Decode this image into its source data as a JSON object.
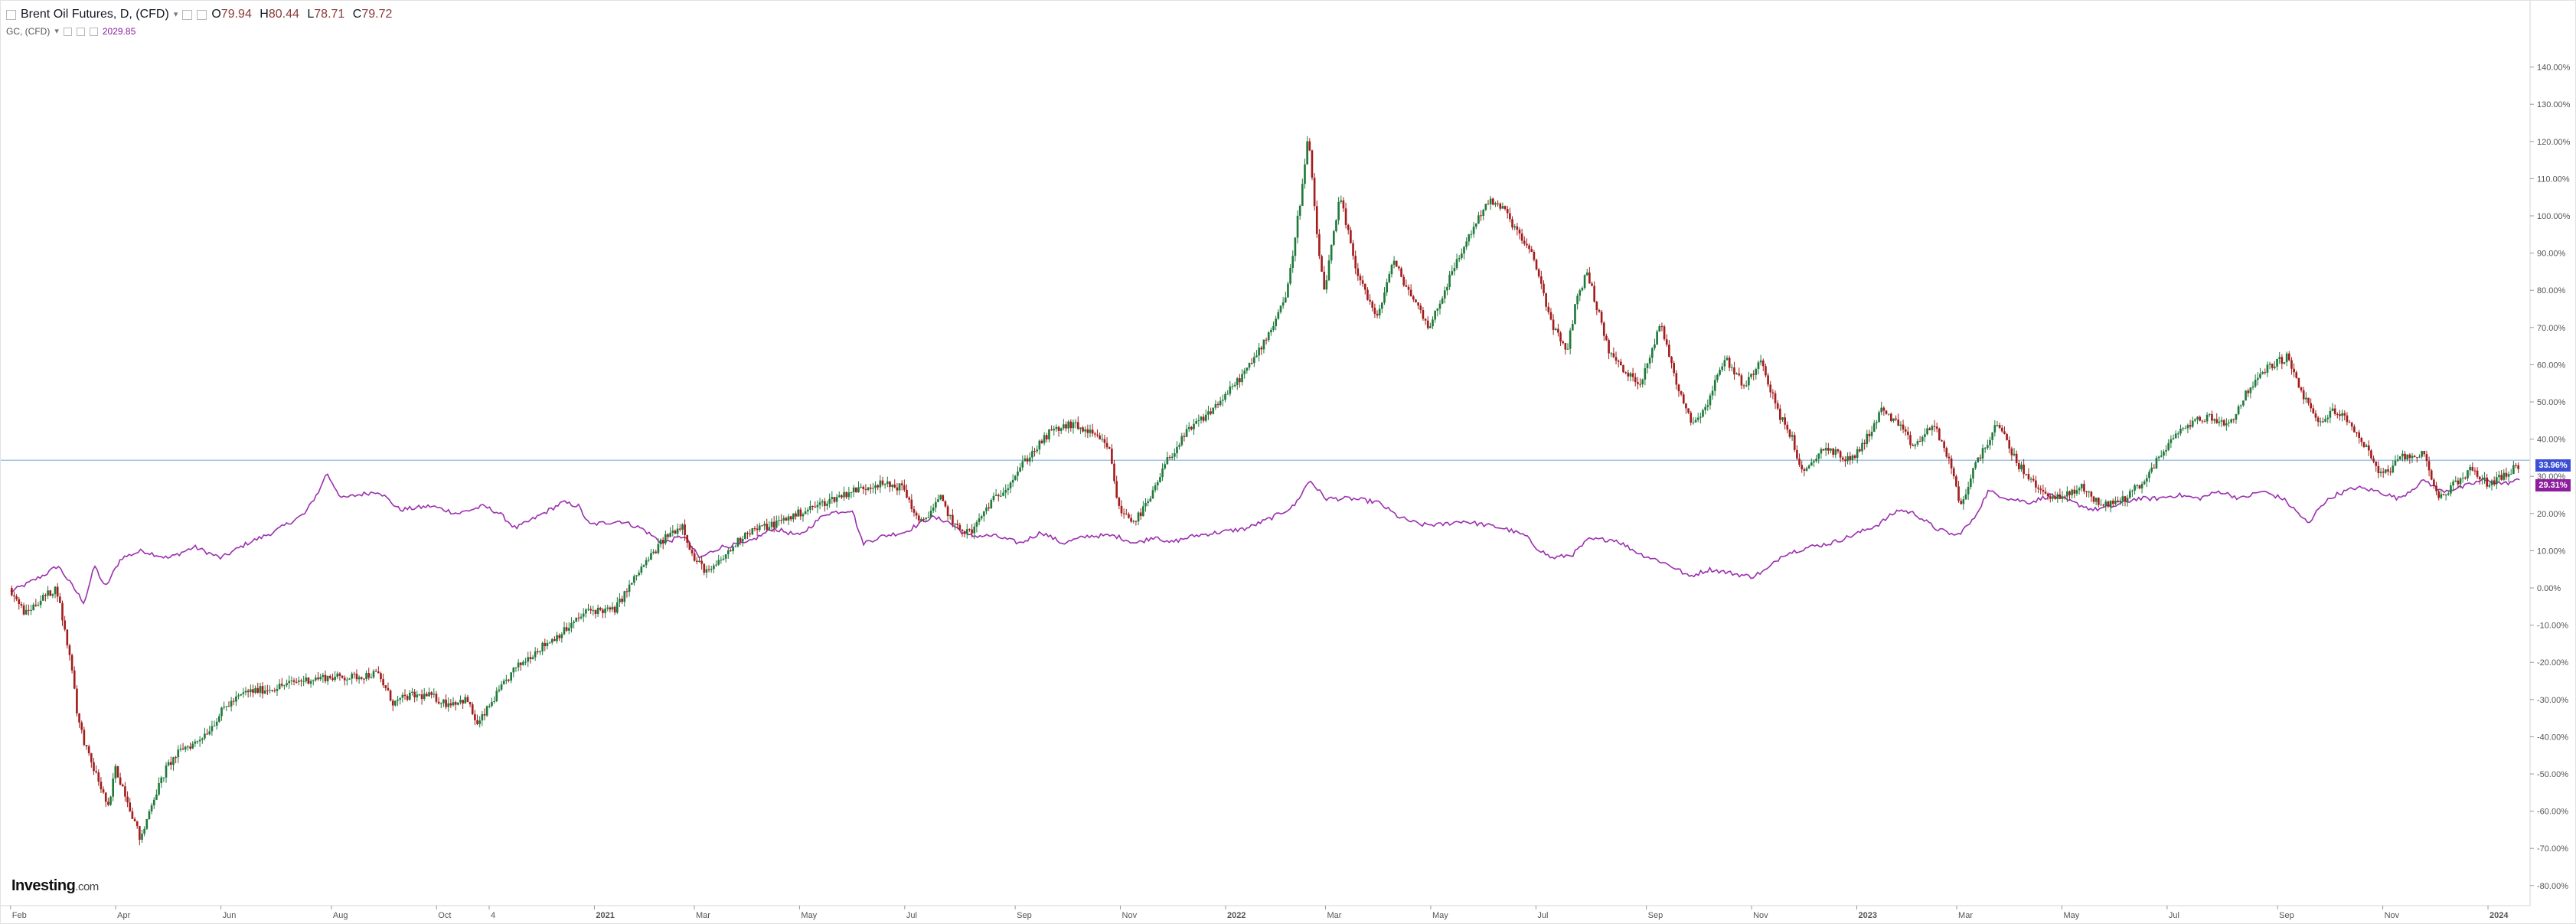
{
  "header": {
    "symbol": "Brent Oil Futures, D, (CFD)",
    "open_k": "O",
    "open": "79.94",
    "high_k": "H",
    "high": "80.44",
    "low_k": "L",
    "low": "78.71",
    "close_k": "C",
    "close": "79.72",
    "compare_symbol": "GC, (CFD)",
    "compare_value": "2029.85"
  },
  "logo": {
    "name": "Investing",
    "suffix": ".com"
  },
  "badges": {
    "brent": "33.96%",
    "gold": "29.31%"
  },
  "colors": {
    "up": "#1f7a3b",
    "down": "#a31d1d",
    "compare_line": "#9b2fae",
    "crosshair": "#9fc4e8",
    "brent_badge": "#3b4fd6",
    "gold_badge": "#8e1e9e"
  },
  "chart_data": {
    "type": "line",
    "y_unit": "percent change",
    "ylim": [
      -80,
      150
    ],
    "y_ticks": [
      {
        "v": 140,
        "label": "140.00%"
      },
      {
        "v": 130,
        "label": "130.00%"
      },
      {
        "v": 120,
        "label": "120.00%"
      },
      {
        "v": 110,
        "label": "110.00%"
      },
      {
        "v": 100,
        "label": "100.00%"
      },
      {
        "v": 90,
        "label": "90.00%"
      },
      {
        "v": 80,
        "label": "80.00%"
      },
      {
        "v": 70,
        "label": "70.00%"
      },
      {
        "v": 60,
        "label": "60.00%"
      },
      {
        "v": 50,
        "label": "50.00%"
      },
      {
        "v": 40,
        "label": "40.00%"
      },
      {
        "v": 30,
        "label": "30.00%"
      },
      {
        "v": 20,
        "label": "20.00%"
      },
      {
        "v": 10,
        "label": "10.00%"
      },
      {
        "v": 0,
        "label": "0.00%"
      },
      {
        "v": -10,
        "label": "-10.00%"
      },
      {
        "v": -20,
        "label": "-20.00%"
      },
      {
        "v": -30,
        "label": "-30.00%"
      },
      {
        "v": -40,
        "label": "-40.00%"
      },
      {
        "v": -50,
        "label": "-50.00%"
      },
      {
        "v": -60,
        "label": "-60.00%"
      },
      {
        "v": -70,
        "label": "-70.00%"
      },
      {
        "v": -80,
        "label": "-80.00%"
      }
    ],
    "x_ticks": [
      {
        "t": 0.0,
        "label": "Feb"
      },
      {
        "t": 2.0,
        "label": "Apr"
      },
      {
        "t": 4.0,
        "label": "Jun"
      },
      {
        "t": 6.1,
        "label": "Aug"
      },
      {
        "t": 8.1,
        "label": "Oct"
      },
      {
        "t": 9.1,
        "label": "4"
      },
      {
        "t": 11.1,
        "label": "2021"
      },
      {
        "t": 13.0,
        "label": "Mar"
      },
      {
        "t": 15.0,
        "label": "May"
      },
      {
        "t": 17.0,
        "label": "Jul"
      },
      {
        "t": 19.1,
        "label": "Sep"
      },
      {
        "t": 21.1,
        "label": "Nov"
      },
      {
        "t": 23.1,
        "label": "2022"
      },
      {
        "t": 25.0,
        "label": "Mar"
      },
      {
        "t": 27.0,
        "label": "May"
      },
      {
        "t": 29.0,
        "label": "Jul"
      },
      {
        "t": 31.1,
        "label": "Sep"
      },
      {
        "t": 33.1,
        "label": "Nov"
      },
      {
        "t": 35.1,
        "label": "2023"
      },
      {
        "t": 37.0,
        "label": "Mar"
      },
      {
        "t": 39.0,
        "label": "May"
      },
      {
        "t": 41.0,
        "label": "Jul"
      },
      {
        "t": 43.1,
        "label": "Sep"
      },
      {
        "t": 45.1,
        "label": "Nov"
      },
      {
        "t": 47.1,
        "label": "2024"
      }
    ],
    "x_range_months": [
      -0.2,
      47.9
    ],
    "series": [
      {
        "name": "Brent Oil Futures, D, (CFD)",
        "style": "candles",
        "points": [
          [
            0.0,
            0
          ],
          [
            0.3,
            -7
          ],
          [
            0.6,
            -3
          ],
          [
            0.9,
            0
          ],
          [
            1.1,
            -15
          ],
          [
            1.2,
            -22
          ],
          [
            1.3,
            -35
          ],
          [
            1.5,
            -45
          ],
          [
            1.7,
            -52
          ],
          [
            1.9,
            -60
          ],
          [
            2.0,
            -48
          ],
          [
            2.2,
            -55
          ],
          [
            2.5,
            -68
          ],
          [
            2.7,
            -58
          ],
          [
            3.0,
            -48
          ],
          [
            3.3,
            -43
          ],
          [
            3.5,
            -42
          ],
          [
            3.8,
            -38
          ],
          [
            4.1,
            -32
          ],
          [
            4.5,
            -28
          ],
          [
            5.0,
            -27
          ],
          [
            5.5,
            -25
          ],
          [
            6.0,
            -24
          ],
          [
            6.5,
            -24
          ],
          [
            7.0,
            -23
          ],
          [
            7.3,
            -31
          ],
          [
            7.6,
            -29
          ],
          [
            8.0,
            -29
          ],
          [
            8.3,
            -31
          ],
          [
            8.7,
            -30
          ],
          [
            8.9,
            -37
          ],
          [
            9.2,
            -30
          ],
          [
            9.6,
            -22
          ],
          [
            10.0,
            -17
          ],
          [
            10.6,
            -11
          ],
          [
            11.0,
            -6
          ],
          [
            11.5,
            -6
          ],
          [
            12.0,
            5
          ],
          [
            12.5,
            14
          ],
          [
            12.8,
            17
          ],
          [
            13.0,
            8
          ],
          [
            13.3,
            4
          ],
          [
            13.7,
            10
          ],
          [
            14.0,
            15
          ],
          [
            14.5,
            17
          ],
          [
            15.0,
            20
          ],
          [
            15.5,
            23
          ],
          [
            16.0,
            26
          ],
          [
            16.5,
            28
          ],
          [
            17.0,
            27
          ],
          [
            17.3,
            17
          ],
          [
            17.7,
            24
          ],
          [
            18.0,
            16
          ],
          [
            18.3,
            15
          ],
          [
            18.6,
            22
          ],
          [
            19.0,
            28
          ],
          [
            19.3,
            34
          ],
          [
            19.8,
            42
          ],
          [
            20.2,
            44
          ],
          [
            20.5,
            42
          ],
          [
            20.9,
            38
          ],
          [
            21.1,
            21
          ],
          [
            21.4,
            18
          ],
          [
            21.7,
            24
          ],
          [
            22.0,
            34
          ],
          [
            22.4,
            42
          ],
          [
            22.8,
            47
          ],
          [
            23.2,
            53
          ],
          [
            23.6,
            60
          ],
          [
            24.0,
            70
          ],
          [
            24.3,
            80
          ],
          [
            24.6,
            110
          ],
          [
            24.7,
            122
          ],
          [
            24.85,
            95
          ],
          [
            25.0,
            80
          ],
          [
            25.3,
            105
          ],
          [
            25.6,
            86
          ],
          [
            26.0,
            72
          ],
          [
            26.3,
            88
          ],
          [
            26.6,
            80
          ],
          [
            27.0,
            70
          ],
          [
            27.4,
            84
          ],
          [
            27.8,
            96
          ],
          [
            28.1,
            104
          ],
          [
            28.4,
            102
          ],
          [
            28.7,
            95
          ],
          [
            29.0,
            88
          ],
          [
            29.3,
            72
          ],
          [
            29.6,
            63
          ],
          [
            29.8,
            78
          ],
          [
            30.0,
            85
          ],
          [
            30.4,
            64
          ],
          [
            30.7,
            58
          ],
          [
            31.0,
            55
          ],
          [
            31.4,
            71
          ],
          [
            31.7,
            55
          ],
          [
            32.0,
            44
          ],
          [
            32.3,
            50
          ],
          [
            32.6,
            62
          ],
          [
            33.0,
            54
          ],
          [
            33.3,
            62
          ],
          [
            33.6,
            48
          ],
          [
            33.9,
            40
          ],
          [
            34.1,
            30
          ],
          [
            34.5,
            38
          ],
          [
            35.0,
            34
          ],
          [
            35.3,
            40
          ],
          [
            35.6,
            48
          ],
          [
            35.9,
            44
          ],
          [
            36.2,
            38
          ],
          [
            36.6,
            44
          ],
          [
            36.9,
            33
          ],
          [
            37.1,
            22
          ],
          [
            37.4,
            34
          ],
          [
            37.8,
            44
          ],
          [
            38.2,
            33
          ],
          [
            38.6,
            26
          ],
          [
            39.0,
            24
          ],
          [
            39.4,
            27
          ],
          [
            39.8,
            22
          ],
          [
            40.2,
            24
          ],
          [
            40.6,
            29
          ],
          [
            41.0,
            38
          ],
          [
            41.4,
            44
          ],
          [
            41.8,
            46
          ],
          [
            42.2,
            44
          ],
          [
            42.6,
            54
          ],
          [
            43.0,
            60
          ],
          [
            43.3,
            62
          ],
          [
            43.6,
            52
          ],
          [
            43.9,
            44
          ],
          [
            44.2,
            48
          ],
          [
            44.5,
            44
          ],
          [
            44.8,
            38
          ],
          [
            45.1,
            30
          ],
          [
            45.5,
            35
          ],
          [
            45.9,
            36
          ],
          [
            46.2,
            24
          ],
          [
            46.5,
            28
          ],
          [
            46.8,
            32
          ],
          [
            47.1,
            28
          ],
          [
            47.4,
            30
          ],
          [
            47.7,
            33
          ]
        ]
      },
      {
        "name": "GC, (CFD)",
        "style": "line",
        "points": [
          [
            0.0,
            -1
          ],
          [
            0.3,
            1
          ],
          [
            0.7,
            4
          ],
          [
            0.9,
            6
          ],
          [
            1.1,
            2
          ],
          [
            1.4,
            -4
          ],
          [
            1.6,
            6
          ],
          [
            1.8,
            0
          ],
          [
            2.1,
            8
          ],
          [
            2.5,
            10
          ],
          [
            3.0,
            8
          ],
          [
            3.5,
            11
          ],
          [
            4.0,
            8
          ],
          [
            4.5,
            12
          ],
          [
            5.0,
            15
          ],
          [
            5.6,
            20
          ],
          [
            5.9,
            27
          ],
          [
            6.0,
            31
          ],
          [
            6.3,
            24
          ],
          [
            6.6,
            25
          ],
          [
            7.0,
            26
          ],
          [
            7.4,
            21
          ],
          [
            8.0,
            22
          ],
          [
            8.5,
            20
          ],
          [
            9.0,
            22
          ],
          [
            9.3,
            20
          ],
          [
            9.6,
            16
          ],
          [
            10.0,
            19
          ],
          [
            10.5,
            23
          ],
          [
            10.8,
            22
          ],
          [
            11.0,
            17
          ],
          [
            11.6,
            18
          ],
          [
            12.0,
            16
          ],
          [
            12.4,
            12
          ],
          [
            12.8,
            14
          ],
          [
            13.1,
            8
          ],
          [
            13.5,
            11
          ],
          [
            14.0,
            12
          ],
          [
            14.5,
            16
          ],
          [
            15.0,
            14
          ],
          [
            15.5,
            20
          ],
          [
            16.0,
            21
          ],
          [
            16.2,
            12
          ],
          [
            16.6,
            14
          ],
          [
            17.0,
            15
          ],
          [
            17.5,
            19
          ],
          [
            17.8,
            18
          ],
          [
            18.2,
            14
          ],
          [
            18.7,
            14
          ],
          [
            19.2,
            12
          ],
          [
            19.6,
            15
          ],
          [
            20.0,
            12
          ],
          [
            20.5,
            14
          ],
          [
            21.0,
            14
          ],
          [
            21.4,
            12
          ],
          [
            21.8,
            14
          ],
          [
            22.0,
            12
          ],
          [
            22.5,
            14
          ],
          [
            23.0,
            15
          ],
          [
            23.5,
            16
          ],
          [
            24.0,
            19
          ],
          [
            24.4,
            22
          ],
          [
            24.7,
            29
          ],
          [
            25.0,
            24
          ],
          [
            25.5,
            24
          ],
          [
            26.0,
            23
          ],
          [
            26.4,
            19
          ],
          [
            26.8,
            17
          ],
          [
            27.2,
            17
          ],
          [
            27.6,
            18
          ],
          [
            28.0,
            17
          ],
          [
            28.4,
            16
          ],
          [
            28.8,
            14
          ],
          [
            29.0,
            11
          ],
          [
            29.3,
            8
          ],
          [
            29.7,
            9
          ],
          [
            30.0,
            13
          ],
          [
            30.5,
            13
          ],
          [
            31.0,
            9
          ],
          [
            31.4,
            7
          ],
          [
            31.7,
            5
          ],
          [
            31.9,
            3
          ],
          [
            32.3,
            5
          ],
          [
            32.7,
            4
          ],
          [
            33.1,
            3
          ],
          [
            33.4,
            5
          ],
          [
            33.7,
            9
          ],
          [
            34.2,
            11
          ],
          [
            34.6,
            12
          ],
          [
            35.0,
            14
          ],
          [
            35.5,
            17
          ],
          [
            35.9,
            21
          ],
          [
            36.2,
            20
          ],
          [
            36.6,
            16
          ],
          [
            37.0,
            14
          ],
          [
            37.3,
            18
          ],
          [
            37.6,
            26
          ],
          [
            38.0,
            24
          ],
          [
            38.4,
            23
          ],
          [
            38.8,
            25
          ],
          [
            39.2,
            23
          ],
          [
            39.6,
            21
          ],
          [
            40.0,
            22
          ],
          [
            40.4,
            24
          ],
          [
            40.8,
            24
          ],
          [
            41.2,
            25
          ],
          [
            41.6,
            24
          ],
          [
            42.0,
            26
          ],
          [
            42.4,
            24
          ],
          [
            42.8,
            26
          ],
          [
            43.2,
            24
          ],
          [
            43.5,
            20
          ],
          [
            43.7,
            17
          ],
          [
            43.9,
            22
          ],
          [
            44.2,
            25
          ],
          [
            44.6,
            27
          ],
          [
            45.0,
            26
          ],
          [
            45.4,
            24
          ],
          [
            45.6,
            26
          ],
          [
            45.9,
            29
          ],
          [
            46.2,
            26
          ],
          [
            46.6,
            27
          ],
          [
            47.0,
            29
          ],
          [
            47.4,
            28
          ],
          [
            47.7,
            29
          ]
        ]
      }
    ],
    "crosshair_y": 34.3,
    "grid": false
  }
}
